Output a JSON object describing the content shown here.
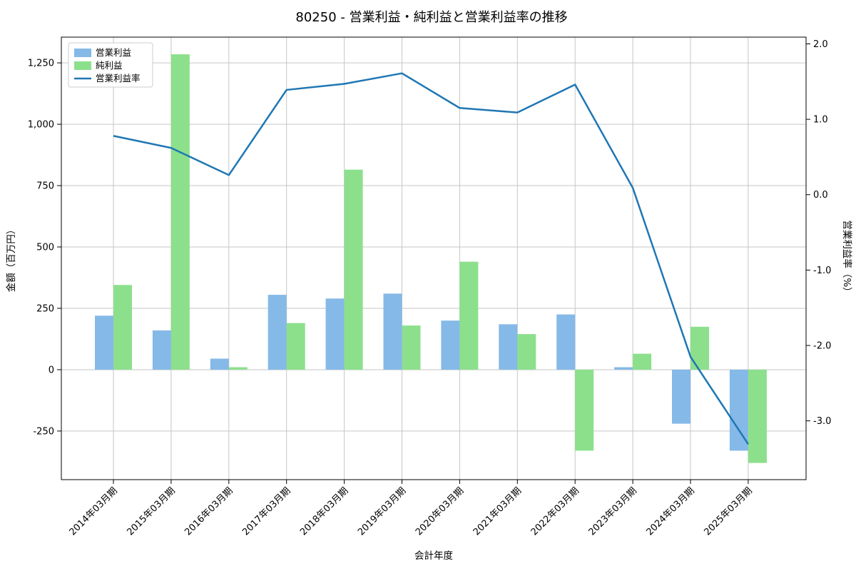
{
  "title": "80250 - 営業利益・純利益と営業利益率の推移",
  "chart_data": {
    "type": "bar",
    "title": "80250 - 営業利益・純利益と営業利益率の推移",
    "categories": [
      "2014年03月期",
      "2015年03月期",
      "2016年03月期",
      "2017年03月期",
      "2018年03月期",
      "2019年03月期",
      "2020年03月期",
      "2021年03月期",
      "2022年03月期",
      "2023年03月期",
      "2024年03月期",
      "2025年03月期"
    ],
    "series": [
      {
        "name": "営業利益",
        "type": "bar",
        "axis": "left",
        "color": "#85b9e8",
        "values": [
          220,
          160,
          45,
          305,
          290,
          310,
          200,
          185,
          225,
          10,
          -220,
          -330
        ]
      },
      {
        "name": "純利益",
        "type": "bar",
        "axis": "left",
        "color": "#8ce08c",
        "values": [
          345,
          1285,
          10,
          190,
          815,
          180,
          440,
          145,
          -330,
          65,
          175,
          -380
        ]
      },
      {
        "name": "営業利益率",
        "type": "line",
        "axis": "right",
        "color": "#1f77b4",
        "values": [
          0.78,
          0.62,
          0.26,
          1.39,
          1.47,
          1.61,
          1.15,
          1.09,
          1.46,
          0.09,
          -2.15,
          -3.31
        ]
      }
    ],
    "xlabel": "会計年度",
    "ylabel_left": "金額（百万円）",
    "ylabel_right": "営業利益率（%）",
    "ylim_left": [
      -448,
      1355
    ],
    "ylim_right": [
      -3.78,
      2.09
    ],
    "yticks_left": {
      "values": [
        -250,
        0,
        250,
        500,
        750,
        1000,
        1250
      ],
      "labels": [
        "-250",
        "0",
        "250",
        "500",
        "750",
        "1,000",
        "1,250"
      ]
    },
    "yticks_right": {
      "values": [
        2.0,
        1.0,
        0.0,
        -1.0,
        -2.0,
        -3.0
      ],
      "labels": [
        "2.0",
        "1.0",
        "0.0",
        "-1.0",
        "-2.0",
        "-3.0"
      ]
    },
    "grid": true,
    "legend_position": "upper left",
    "colors": {
      "grid": "#c6c6c6",
      "spine": "#000000",
      "legend_border": "#cccccc"
    }
  }
}
